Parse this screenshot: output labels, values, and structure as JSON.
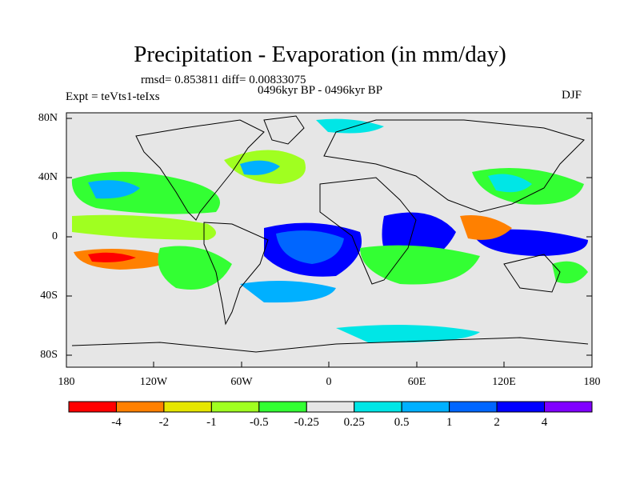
{
  "title": "Precipitation - Evaporation (in mm/day)",
  "stats_line": "rmsd= 0.853811 diff= 0.00833075",
  "experiment": "Expt = teVts1-teIxs",
  "period": "0496kyr BP - 0496kyr BP",
  "season": "DJF",
  "map": {
    "lon_range": [
      -180,
      180
    ],
    "lat_range": [
      -90,
      90
    ],
    "lat_ticks": [
      {
        "value": 80,
        "label": "80N"
      },
      {
        "value": 40,
        "label": "40N"
      },
      {
        "value": 0,
        "label": "0"
      },
      {
        "value": -40,
        "label": "40S"
      },
      {
        "value": -80,
        "label": "80S"
      }
    ],
    "lon_ticks": [
      {
        "value": -180,
        "label": "180"
      },
      {
        "value": -120,
        "label": "120W"
      },
      {
        "value": -60,
        "label": "60W"
      },
      {
        "value": 0,
        "label": "0"
      },
      {
        "value": 60,
        "label": "60E"
      },
      {
        "value": 120,
        "label": "120E"
      },
      {
        "value": 180,
        "label": "180"
      }
    ]
  },
  "colorbar": {
    "colors": [
      "#ff0000",
      "#ff8000",
      "#e6e600",
      "#a0ff20",
      "#33ff33",
      "#e6e6e6",
      "#00e6e6",
      "#00b0ff",
      "#0066ff",
      "#0000ff",
      "#8000ff"
    ],
    "labels": [
      "-4",
      "-2",
      "-1",
      "-0.5",
      "-0.25",
      "0.25",
      "0.5",
      "1",
      "2",
      "4"
    ]
  }
}
